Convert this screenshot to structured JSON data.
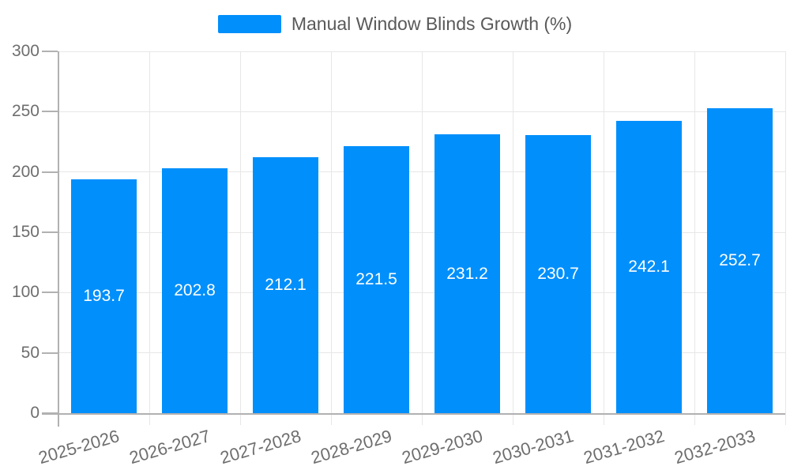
{
  "chart_data": {
    "type": "bar",
    "title": "Manual Window Blinds Growth (%)",
    "categories": [
      "2025-2026",
      "2026-2027",
      "2027-2028",
      "2028-2029",
      "2029-2030",
      "2030-2031",
      "2031-2032",
      "2032-2033"
    ],
    "values": [
      193.7,
      202.8,
      212.1,
      221.5,
      231.2,
      230.7,
      242.1,
      252.7
    ],
    "xlabel": "",
    "ylabel": "",
    "ylim": [
      0,
      300
    ],
    "yticks": [
      0,
      50,
      100,
      150,
      200,
      250,
      300
    ],
    "grid": true,
    "legend_position": "top",
    "x_label_rotation_deg": -16,
    "colors": {
      "bar": "#008FFB",
      "value_label": "#ffffff",
      "axis_text": "#6e6e6e",
      "legend_text": "#595959",
      "gridline": "#e7e7e7",
      "axis_line": "#b1b1b1"
    }
  }
}
